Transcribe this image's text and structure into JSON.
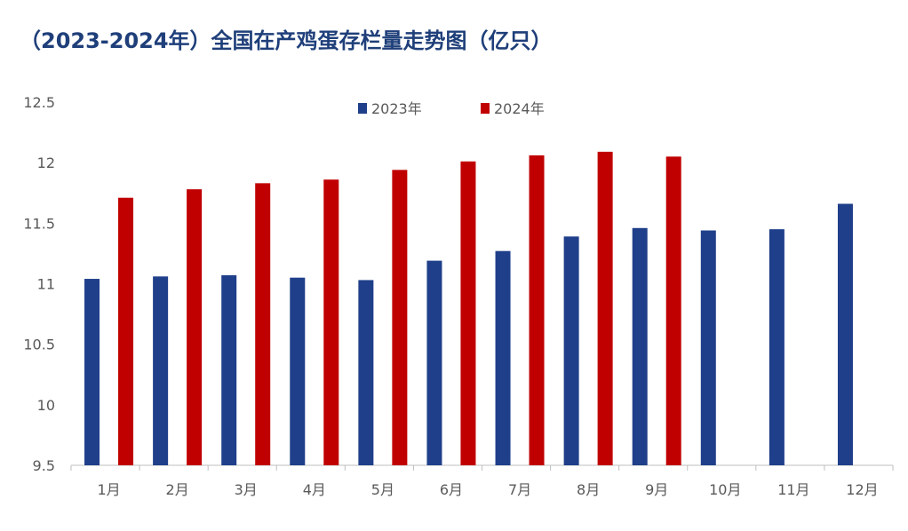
{
  "chart_data": {
    "type": "bar",
    "title": "（2023-2024年）全国在产鸡蛋存栏量走势图（亿只）",
    "xlabel": "",
    "ylabel": "",
    "categories": [
      "1月",
      "2月",
      "3月",
      "4月",
      "5月",
      "6月",
      "7月",
      "8月",
      "9月",
      "10月",
      "11月",
      "12月"
    ],
    "y_ticks": [
      "9.5",
      "10",
      "10.5",
      "11",
      "11.5",
      "12",
      "12.5"
    ],
    "ylim": [
      9.5,
      12.5
    ],
    "grid": false,
    "legend_position": "top-center",
    "series": [
      {
        "name": "2023年",
        "color": "#1f3f8a",
        "values": [
          11.04,
          11.06,
          11.07,
          11.05,
          11.03,
          11.19,
          11.27,
          11.39,
          11.46,
          11.44,
          11.45,
          11.66
        ]
      },
      {
        "name": "2024年",
        "color": "#c00000",
        "values": [
          11.71,
          11.78,
          11.83,
          11.86,
          11.94,
          12.01,
          12.06,
          12.09,
          12.05,
          null,
          null,
          null
        ]
      }
    ]
  }
}
